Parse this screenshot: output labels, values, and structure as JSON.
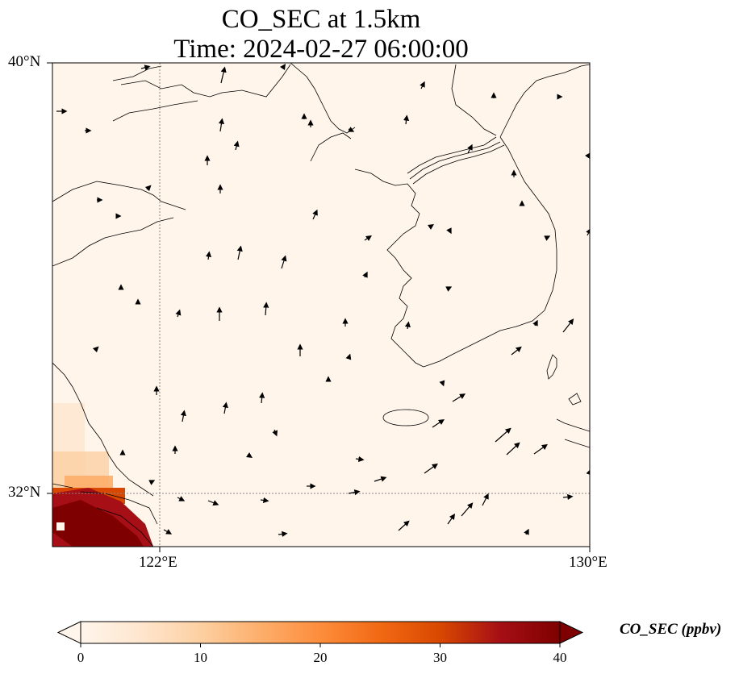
{
  "title": {
    "line1": "CO_SEC at 1.5km",
    "line2": "Time: 2024-02-27 06:00:00"
  },
  "axes": {
    "lat_labels": [
      {
        "value": 40,
        "text": "40°N"
      },
      {
        "value": 32,
        "text": "32°N"
      }
    ],
    "lon_labels": [
      {
        "value": 122,
        "text": "122°E"
      },
      {
        "value": 130,
        "text": "130°E"
      }
    ],
    "lon_range": [
      120,
      130
    ],
    "lat_range": [
      31,
      40
    ],
    "gridlines": "dotted"
  },
  "colorbar": {
    "label": "CO_SEC (ppbv)",
    "min": 0,
    "max": 40,
    "ticks": [
      "0",
      "10",
      "20",
      "30",
      "40"
    ],
    "colors": [
      "#fff5eb",
      "#fee6ce",
      "#fdd0a2",
      "#fdae6b",
      "#fd8d3c",
      "#f16913",
      "#d94801",
      "#a50f15",
      "#7f0000"
    ],
    "extend": "both"
  },
  "colors": {
    "background": "#fff5eb",
    "coast": "#000000",
    "high_concentration": "#8b0000"
  }
}
